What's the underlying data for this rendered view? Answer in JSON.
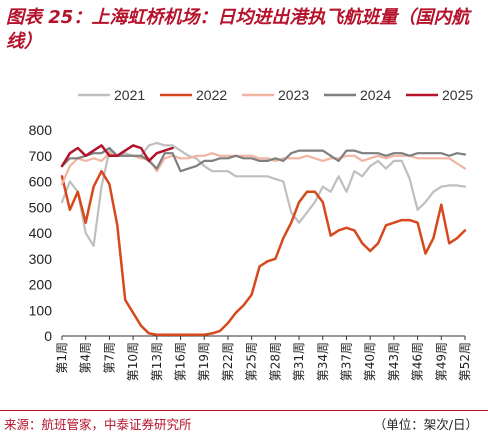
{
  "header": {
    "title": "图表 25：上海虹桥机场：日均进出港执飞航班量（国内航线）"
  },
  "footer": {
    "source": "来源：航班管家，中泰证券研究所",
    "unit": "（单位：架次/日）"
  },
  "chart_data": {
    "type": "line",
    "title": "图表 25：上海虹桥机场：日均进出港执飞航班量（国内航线）",
    "ylim": [
      0,
      800
    ],
    "yticks": [
      0,
      100,
      200,
      300,
      400,
      500,
      600,
      700,
      800
    ],
    "xlim": [
      1,
      52
    ],
    "xtick_labels": [
      "第1周",
      "第4周",
      "第7周",
      "第10周",
      "第13周",
      "第16周",
      "第19周",
      "第22周",
      "第25周",
      "第28周",
      "第31周",
      "第34周",
      "第37周",
      "第40周",
      "第43周",
      "第46周",
      "第49周",
      "第52周"
    ],
    "xtick_weeks": [
      1,
      4,
      7,
      10,
      13,
      16,
      19,
      22,
      25,
      28,
      31,
      34,
      37,
      40,
      43,
      46,
      49,
      52
    ],
    "grid": false,
    "legend_position": "top",
    "series": [
      {
        "name": "2021",
        "color": "#bfbfbf",
        "width": 2.2,
        "x": [
          1,
          2,
          3,
          4,
          5,
          6,
          7,
          8,
          9,
          10,
          11,
          12,
          13,
          14,
          15,
          16,
          17,
          18,
          19,
          20,
          21,
          22,
          23,
          24,
          25,
          26,
          27,
          28,
          29,
          30,
          31,
          32,
          33,
          34,
          35,
          36,
          37,
          38,
          39,
          40,
          41,
          42,
          43,
          44,
          45,
          46,
          47,
          48,
          49,
          50,
          51,
          52
        ],
        "values": [
          520,
          600,
          560,
          400,
          350,
          580,
          720,
          700,
          710,
          700,
          700,
          740,
          750,
          740,
          740,
          720,
          700,
          690,
          660,
          640,
          640,
          640,
          620,
          620,
          620,
          620,
          620,
          610,
          600,
          480,
          440,
          480,
          520,
          580,
          560,
          620,
          560,
          640,
          620,
          660,
          680,
          650,
          680,
          680,
          610,
          490,
          520,
          560,
          580,
          585,
          585,
          580
        ]
      },
      {
        "name": "2022",
        "color": "#d6491c",
        "width": 2.5,
        "x": [
          1,
          2,
          3,
          4,
          5,
          6,
          7,
          8,
          9,
          10,
          11,
          12,
          13,
          14,
          15,
          16,
          17,
          18,
          19,
          20,
          21,
          22,
          23,
          24,
          25,
          26,
          27,
          28,
          29,
          30,
          31,
          32,
          33,
          34,
          35,
          36,
          37,
          38,
          39,
          40,
          41,
          42,
          43,
          44,
          45,
          46,
          47,
          48,
          49,
          50,
          51,
          52
        ],
        "values": [
          620,
          490,
          560,
          440,
          580,
          640,
          590,
          430,
          140,
          90,
          40,
          10,
          5,
          5,
          5,
          5,
          5,
          5,
          5,
          10,
          20,
          50,
          90,
          120,
          160,
          270,
          290,
          300,
          380,
          440,
          520,
          560,
          560,
          520,
          390,
          410,
          420,
          410,
          360,
          330,
          360,
          430,
          440,
          450,
          450,
          440,
          320,
          380,
          510,
          360,
          380,
          410
        ]
      },
      {
        "name": "2023",
        "color": "#f2b4a2",
        "width": 2.2,
        "x": [
          1,
          2,
          3,
          4,
          5,
          6,
          7,
          8,
          9,
          10,
          11,
          12,
          13,
          14,
          15,
          16,
          17,
          18,
          19,
          20,
          21,
          22,
          23,
          24,
          25,
          26,
          27,
          28,
          29,
          30,
          31,
          32,
          33,
          34,
          35,
          36,
          37,
          38,
          39,
          40,
          41,
          42,
          43,
          44,
          45,
          46,
          47,
          48,
          49,
          50,
          51,
          52
        ],
        "values": [
          590,
          660,
          690,
          680,
          690,
          680,
          710,
          700,
          700,
          700,
          690,
          690,
          640,
          690,
          700,
          690,
          690,
          700,
          700,
          710,
          700,
          700,
          700,
          700,
          700,
          690,
          690,
          680,
          690,
          690,
          690,
          700,
          690,
          680,
          690,
          690,
          700,
          700,
          680,
          690,
          700,
          690,
          700,
          700,
          700,
          690,
          690,
          690,
          690,
          690,
          670,
          650
        ]
      },
      {
        "name": "2024",
        "color": "#7f7f7f",
        "width": 2.2,
        "x": [
          1,
          2,
          3,
          4,
          5,
          6,
          7,
          8,
          9,
          10,
          11,
          12,
          13,
          14,
          15,
          16,
          17,
          18,
          19,
          20,
          21,
          22,
          23,
          24,
          25,
          26,
          27,
          28,
          29,
          30,
          31,
          32,
          33,
          34,
          35,
          36,
          37,
          38,
          39,
          40,
          41,
          42,
          43,
          44,
          45,
          46,
          47,
          48,
          49,
          50,
          51,
          52
        ],
        "values": [
          660,
          690,
          690,
          700,
          710,
          710,
          730,
          700,
          700,
          700,
          700,
          680,
          650,
          710,
          710,
          640,
          650,
          660,
          680,
          680,
          690,
          690,
          700,
          690,
          690,
          680,
          680,
          690,
          680,
          710,
          720,
          720,
          720,
          720,
          700,
          680,
          720,
          720,
          710,
          710,
          710,
          700,
          710,
          710,
          700,
          710,
          710,
          710,
          710,
          700,
          710,
          705
        ]
      },
      {
        "name": "2025",
        "color": "#b5122b",
        "width": 2.5,
        "x": [
          1,
          2,
          3,
          4,
          5,
          6,
          7,
          8,
          9,
          10,
          11,
          12,
          13,
          14,
          15
        ],
        "values": [
          660,
          710,
          730,
          700,
          720,
          740,
          700,
          700,
          720,
          740,
          730,
          680,
          710,
          720,
          730
        ]
      }
    ]
  }
}
